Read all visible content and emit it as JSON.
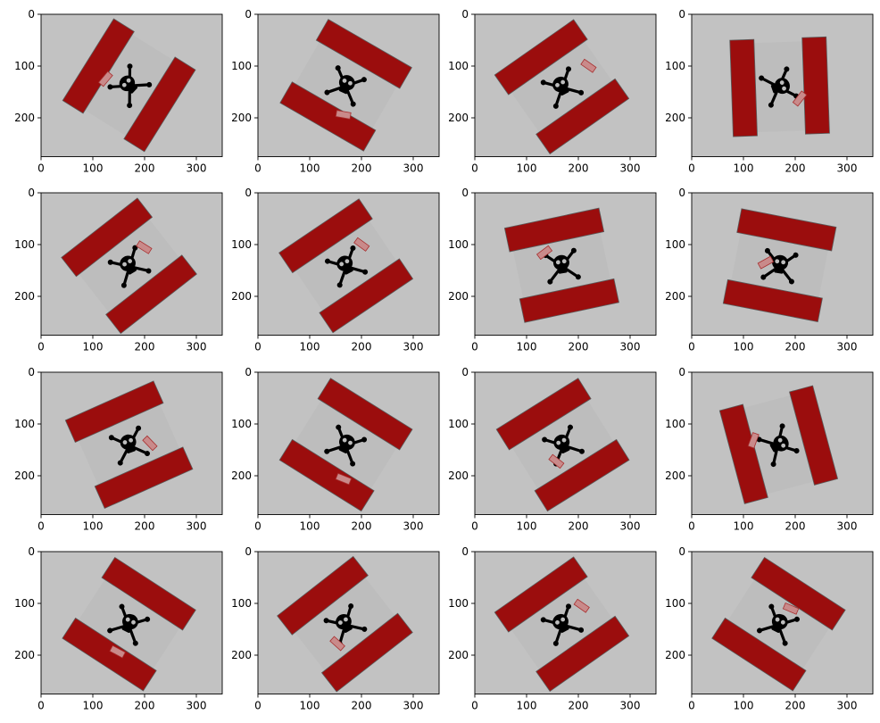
{
  "figure": {
    "rows": 4,
    "cols": 4,
    "image_width": 350,
    "image_height": 275
  },
  "axes": {
    "xticks": [
      0,
      100,
      200,
      300
    ],
    "yticks": [
      0,
      100,
      200
    ],
    "xlim": [
      0,
      350
    ],
    "ylim": [
      275,
      0
    ]
  },
  "colors": {
    "background": "#c2c2c2",
    "board": "#bdbdbd",
    "stripe": "#9b0d0d",
    "stripe_edge": "#5a5a5a",
    "symbol": "#000000",
    "tag": "#c98a8a",
    "tag_edge": "#a83030"
  },
  "panels": [
    {
      "center": [
        170,
        137
      ],
      "angle": -58,
      "tag": {
        "x": -8,
        "y": -26,
        "angle": 8
      }
    },
    {
      "center": [
        170,
        137
      ],
      "angle": 30,
      "tag": {
        "x": 14,
        "y": 30,
        "angle": -20
      }
    },
    {
      "center": [
        168,
        140
      ],
      "angle": -35,
      "tag": {
        "x": 38,
        "y": -2,
        "angle": 70
      }
    },
    {
      "center": [
        170,
        140
      ],
      "angle": 88,
      "tag": {
        "x": 14,
        "y": -22,
        "angle": 40
      }
    },
    {
      "center": [
        170,
        141
      ],
      "angle": -38,
      "tag": {
        "x": 26,
        "y": -6,
        "angle": 70
      }
    },
    {
      "center": [
        170,
        141
      ],
      "angle": -34,
      "tag": {
        "x": 28,
        "y": -10,
        "angle": 70
      }
    },
    {
      "center": [
        168,
        140
      ],
      "angle": -12,
      "tag": {
        "x": -16,
        "y": -18,
        "angle": -25
      }
    },
    {
      "center": [
        170,
        140
      ],
      "angle": 11,
      "tag": {
        "x": -16,
        "y": 0,
        "angle": -40
      }
    },
    {
      "center": [
        170,
        140
      ],
      "angle": -24,
      "tag": {
        "x": 22,
        "y": 8,
        "angle": 70
      }
    },
    {
      "center": [
        170,
        140
      ],
      "angle": 32,
      "tag": {
        "x": 18,
        "y": 34,
        "angle": -10
      }
    },
    {
      "center": [
        170,
        140
      ],
      "angle": -32,
      "tag": {
        "x": -16,
        "y": 12,
        "angle": 70
      }
    },
    {
      "center": [
        168,
        140
      ],
      "angle": 75,
      "tag": {
        "x": -12,
        "y": 26,
        "angle": 35
      }
    },
    {
      "center": [
        170,
        140
      ],
      "angle": 33,
      "tag": {
        "x": 6,
        "y": 33,
        "angle": -5
      }
    },
    {
      "center": [
        168,
        140
      ],
      "angle": -38,
      "tag": {
        "x": -20,
        "y": 12,
        "angle": 80
      }
    },
    {
      "center": [
        168,
        140
      ],
      "angle": -35,
      "tag": {
        "x": 30,
        "y": -4,
        "angle": 70
      }
    },
    {
      "center": [
        168,
        140
      ],
      "angle": 33,
      "tag": {
        "x": 2,
        "y": -22,
        "angle": -10
      }
    }
  ]
}
